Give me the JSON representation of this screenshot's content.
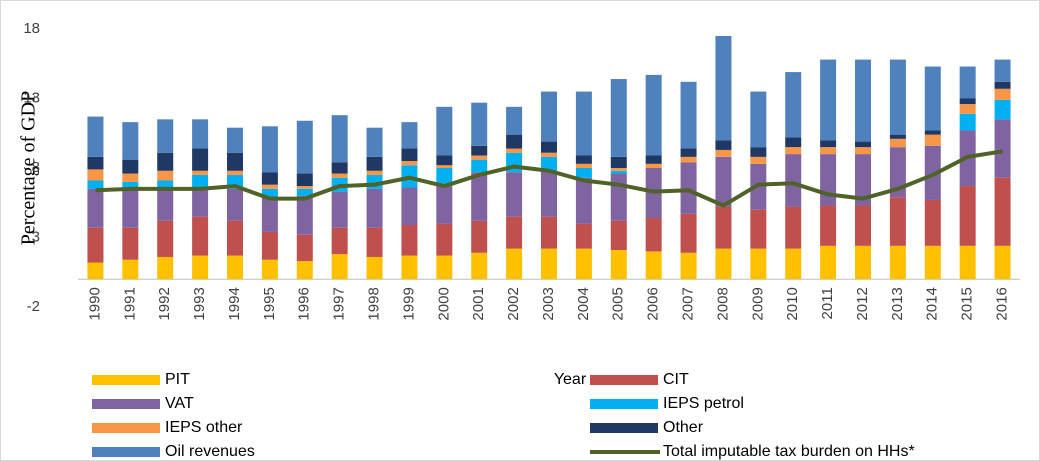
{
  "chart_data": {
    "type": "bar",
    "stacked": true,
    "x_label": "Year",
    "y_label": "Percentage of GDP",
    "categories": [
      "1990",
      "1991",
      "1992",
      "1993",
      "1994",
      "1995",
      "1996",
      "1997",
      "1998",
      "1999",
      "2000",
      "2001",
      "2002",
      "2003",
      "2004",
      "2005",
      "2006",
      "2007",
      "2008",
      "2009",
      "2010",
      "2011",
      "2012",
      "2013",
      "2014",
      "2015",
      "2016"
    ],
    "series": [
      {
        "name": "PIT",
        "color": "#ffc000",
        "values": [
          1.2,
          1.4,
          1.6,
          1.7,
          1.7,
          1.4,
          1.3,
          1.8,
          1.6,
          1.7,
          1.7,
          1.9,
          2.2,
          2.2,
          2.2,
          2.1,
          2.0,
          1.9,
          2.2,
          2.2,
          2.2,
          2.4,
          2.4,
          2.4,
          2.4,
          2.4,
          2.4
        ]
      },
      {
        "name": "CIT",
        "color": "#c0504d",
        "values": [
          2.5,
          2.3,
          2.6,
          2.8,
          2.5,
          2.0,
          1.9,
          1.9,
          2.1,
          2.2,
          2.3,
          2.3,
          2.3,
          2.3,
          1.8,
          2.1,
          2.4,
          2.8,
          3.0,
          2.8,
          3.0,
          2.9,
          2.9,
          3.5,
          3.3,
          4.3,
          4.9
        ]
      },
      {
        "name": "VAT",
        "color": "#8064a2",
        "values": [
          2.8,
          2.8,
          2.4,
          2.1,
          2.3,
          2.5,
          2.8,
          2.6,
          2.8,
          2.7,
          2.7,
          3.5,
          3.2,
          3.3,
          3.3,
          3.4,
          3.6,
          3.7,
          3.6,
          3.3,
          3.8,
          3.7,
          3.7,
          3.6,
          3.9,
          4.0,
          4.2
        ]
      },
      {
        "name": "IEPS petrol",
        "color": "#00b0f0",
        "values": [
          0.6,
          0.5,
          0.5,
          0.9,
          1.0,
          0.6,
          0.5,
          1.0,
          1.0,
          1.6,
          1.3,
          0.9,
          1.4,
          1.0,
          0.7,
          0.2,
          0,
          0,
          0,
          0,
          0,
          0,
          0,
          0,
          0,
          1.2,
          1.4
        ]
      },
      {
        "name": "IEPS other",
        "color": "#f79646",
        "values": [
          0.8,
          0.6,
          0.7,
          0.3,
          0.3,
          0.3,
          0.2,
          0.3,
          0.3,
          0.3,
          0.2,
          0.3,
          0.3,
          0.3,
          0.3,
          0.2,
          0.3,
          0.4,
          0.5,
          0.5,
          0.5,
          0.5,
          0.5,
          0.6,
          0.8,
          0.7,
          0.8
        ]
      },
      {
        "name": "Other",
        "color": "#1f3864",
        "values": [
          0.9,
          1.0,
          1.3,
          1.6,
          1.3,
          0.9,
          0.9,
          0.8,
          1.0,
          0.9,
          0.7,
          0.7,
          1.0,
          0.8,
          0.6,
          0.8,
          0.6,
          0.6,
          0.7,
          0.7,
          0.7,
          0.5,
          0.4,
          0.3,
          0.3,
          0.4,
          0.5
        ]
      },
      {
        "name": "Oil revenues",
        "color": "#4f81bd",
        "values": [
          2.9,
          2.7,
          2.4,
          2.1,
          1.8,
          3.3,
          3.8,
          3.4,
          2.1,
          1.9,
          3.5,
          3.1,
          2.0,
          3.6,
          4.6,
          5.6,
          5.8,
          4.8,
          7.5,
          4.0,
          4.7,
          5.8,
          5.9,
          5.4,
          4.6,
          2.3,
          1.6
        ]
      },
      {
        "name": "Total imputable tax burden on HHs*",
        "color": "#4f6228",
        "type": "line",
        "values": [
          6.4,
          6.5,
          6.5,
          6.5,
          6.7,
          5.8,
          5.8,
          6.7,
          6.8,
          7.3,
          6.7,
          7.5,
          8.1,
          7.8,
          7.1,
          6.8,
          6.3,
          6.4,
          5.3,
          6.8,
          6.9,
          6.1,
          5.8,
          6.5,
          7.5,
          8.8,
          9.2
        ]
      }
    ],
    "ylim": [
      -2,
      18
    ],
    "yticks": [
      -2,
      3,
      8,
      13,
      18
    ],
    "grid": false
  }
}
